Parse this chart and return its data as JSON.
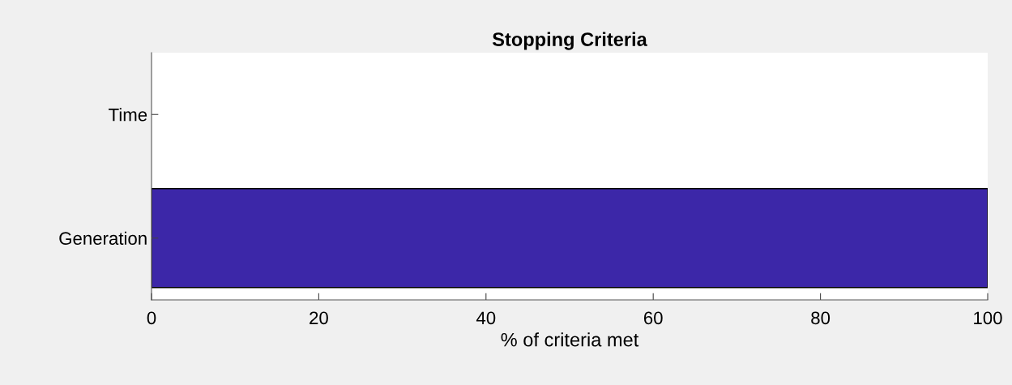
{
  "chart_data": {
    "type": "bar",
    "orientation": "horizontal",
    "title": "Stopping Criteria",
    "xlabel": "% of criteria met",
    "categories": [
      "Time",
      "Generation"
    ],
    "values": [
      0,
      100
    ],
    "color": "#3c27a8",
    "xlim": [
      0,
      100
    ],
    "xticks": [
      0,
      20,
      40,
      60,
      80,
      100
    ],
    "grid": false
  }
}
